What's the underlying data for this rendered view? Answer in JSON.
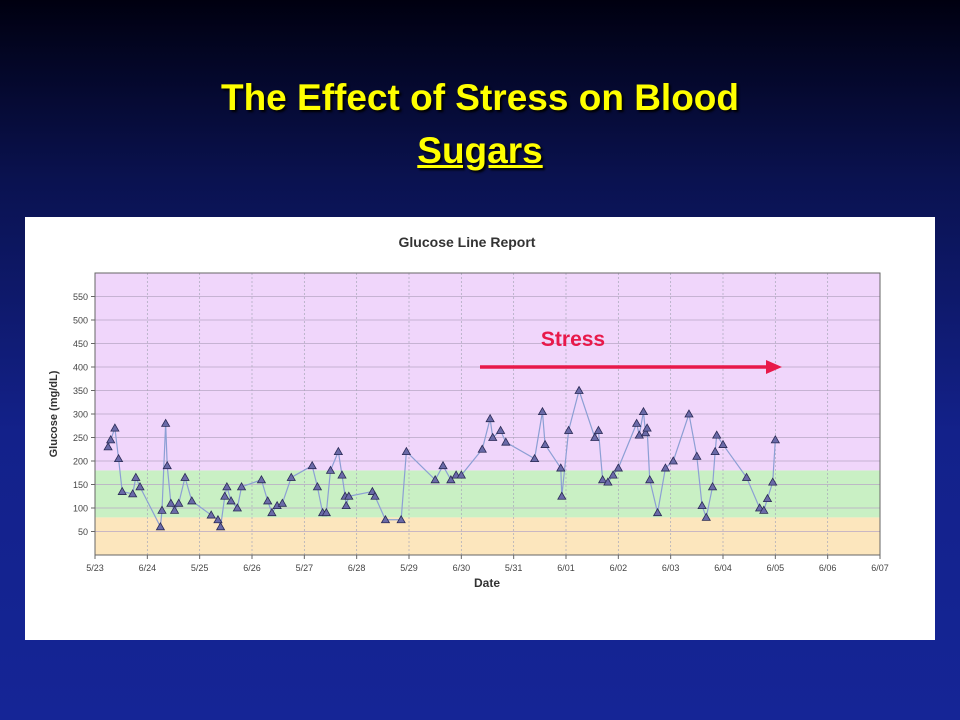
{
  "slide": {
    "title": [
      "The Effect of Stress on Blood",
      "Sugars"
    ]
  },
  "chart_data": {
    "type": "line",
    "title": "Glucose Line Report",
    "x_label": "Date",
    "y_label": "Glucose (mg/dL)",
    "annotation": "Stress",
    "xlim": [
      0,
      15
    ],
    "xticks": [
      {
        "value": 0,
        "label": "5/23"
      },
      {
        "value": 1,
        "label": "6/24"
      },
      {
        "value": 2,
        "label": "5/25"
      },
      {
        "value": 3,
        "label": "6/26"
      },
      {
        "value": 4,
        "label": "5/27"
      },
      {
        "value": 5,
        "label": "6/28"
      },
      {
        "value": 6,
        "label": "5/29"
      },
      {
        "value": 7,
        "label": "6/30"
      },
      {
        "value": 8,
        "label": "5/31"
      },
      {
        "value": 9,
        "label": "6/01"
      },
      {
        "value": 10,
        "label": "6/02"
      },
      {
        "value": 11,
        "label": "6/03"
      },
      {
        "value": 12,
        "label": "6/04"
      },
      {
        "value": 13,
        "label": "6/05"
      },
      {
        "value": 14,
        "label": "6/06"
      },
      {
        "value": 15,
        "label": "6/07"
      }
    ],
    "ylim": [
      0,
      600
    ],
    "yticks": [
      50,
      100,
      150,
      200,
      250,
      300,
      350,
      400,
      450,
      500,
      550
    ],
    "grid": true,
    "bands": [
      {
        "from": 0,
        "to": 80,
        "color": "#fce6bd"
      },
      {
        "from": 80,
        "to": 180,
        "color": "#c9f0c4"
      },
      {
        "from": 180,
        "to": 600,
        "color": "#f0d6fb"
      }
    ],
    "series": [
      {
        "name": "Glucose",
        "color": "#8c9fd4",
        "marker_color": "#6a6aa8",
        "x": [
          0.25,
          0.3,
          0.38,
          0.45,
          0.52,
          0.72,
          0.78,
          0.86,
          1.25,
          1.28,
          1.35,
          1.38,
          1.45,
          1.52,
          1.6,
          1.72,
          1.85,
          2.22,
          2.35,
          2.4,
          2.48,
          2.52,
          2.6,
          2.72,
          2.8,
          3.18,
          3.3,
          3.38,
          3.48,
          3.58,
          3.75,
          4.15,
          4.25,
          4.35,
          4.42,
          4.5,
          4.65,
          4.72,
          4.78,
          4.8,
          4.85,
          5.3,
          5.35,
          5.55,
          5.85,
          5.95,
          6.5,
          6.65,
          6.8,
          6.9,
          7.0,
          7.4,
          7.55,
          7.6,
          7.75,
          7.85,
          8.4,
          8.55,
          8.6,
          8.9,
          8.92,
          9.05,
          9.25,
          9.55,
          9.62,
          9.7,
          9.8,
          9.9,
          10.0,
          10.35,
          10.4,
          10.48,
          10.52,
          10.55,
          10.6,
          10.75,
          10.9,
          11.05,
          11.35,
          11.5,
          11.6,
          11.68,
          11.8,
          11.85,
          11.88,
          12.0,
          12.45,
          12.7,
          12.78,
          12.85,
          12.95,
          13.0
        ],
        "values": [
          230,
          245,
          270,
          205,
          135,
          130,
          165,
          145,
          60,
          95,
          280,
          190,
          110,
          95,
          110,
          165,
          115,
          85,
          75,
          60,
          125,
          145,
          115,
          100,
          145,
          160,
          115,
          90,
          105,
          110,
          165,
          190,
          145,
          90,
          90,
          180,
          220,
          170,
          125,
          105,
          125,
          135,
          125,
          75,
          75,
          220,
          160,
          190,
          160,
          170,
          170,
          225,
          290,
          250,
          265,
          240,
          205,
          305,
          235,
          185,
          125,
          265,
          350,
          250,
          265,
          160,
          155,
          170,
          185,
          280,
          255,
          305,
          260,
          270,
          160,
          90,
          185,
          200,
          300,
          210,
          105,
          80,
          145,
          220,
          255,
          235,
          165,
          100,
          95,
          120,
          155,
          245
        ]
      }
    ]
  }
}
